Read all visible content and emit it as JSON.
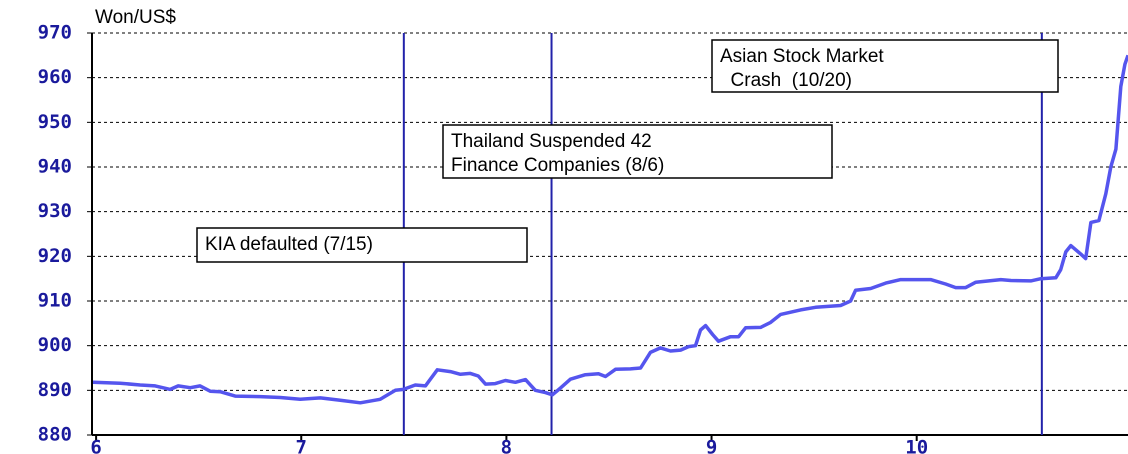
{
  "chart_data": {
    "type": "line",
    "y_label": "Won/US$",
    "xlim": [
      5.98,
      11.03
    ],
    "xticks": [
      6,
      7,
      8,
      9,
      10
    ],
    "ylim": [
      880,
      970
    ],
    "yticks": [
      880,
      890,
      900,
      910,
      920,
      930,
      940,
      950,
      960,
      970
    ],
    "grid": true,
    "series": [
      {
        "color": "#5555ee",
        "x": [
          5.985,
          6.117,
          6.215,
          6.288,
          6.361,
          6.4,
          6.459,
          6.507,
          6.556,
          6.605,
          6.678,
          6.8,
          6.898,
          6.995,
          7.093,
          7.19,
          7.288,
          7.385,
          7.459,
          7.498,
          7.556,
          7.605,
          7.663,
          7.727,
          7.776,
          7.824,
          7.863,
          7.898,
          7.946,
          7.995,
          8.044,
          8.093,
          8.141,
          8.19,
          8.224,
          8.263,
          8.312,
          8.385,
          8.449,
          8.483,
          8.532,
          8.605,
          8.654,
          8.702,
          8.751,
          8.8,
          8.849,
          8.888,
          8.922,
          8.946,
          8.971,
          9.005,
          9.034,
          9.093,
          9.132,
          9.166,
          9.239,
          9.288,
          9.337,
          9.434,
          9.507,
          9.629,
          9.678,
          9.702,
          9.776,
          9.849,
          9.922,
          10.068,
          10.141,
          10.19,
          10.239,
          10.288,
          10.41,
          10.459,
          10.556,
          10.605,
          10.678,
          10.702,
          10.727,
          10.751,
          10.8,
          10.824,
          10.849,
          10.888,
          10.922,
          10.946,
          10.971,
          10.995,
          11.015,
          11.03
        ],
        "values": [
          891.8,
          891.6,
          891.2,
          891,
          890.2,
          891,
          890.6,
          891,
          889.8,
          889.7,
          888.7,
          888.6,
          888.4,
          888,
          888.3,
          887.8,
          887.2,
          888,
          890,
          890.2,
          891.2,
          891,
          894.6,
          894.2,
          893.6,
          893.8,
          893.2,
          891.4,
          891.5,
          892.2,
          891.8,
          892.4,
          890,
          889.5,
          889,
          890.5,
          892.5,
          893.5,
          893.7,
          893.1,
          894.7,
          894.8,
          895,
          898.5,
          899.5,
          898.8,
          899,
          899.8,
          900,
          903.5,
          904.5,
          902.5,
          901,
          902,
          902,
          904,
          904.1,
          905.2,
          907,
          908,
          908.6,
          909,
          910,
          912.4,
          912.8,
          914,
          914.8,
          914.8,
          913.8,
          913,
          913,
          914.2,
          914.8,
          914.6,
          914.5,
          915,
          915.2,
          917,
          921,
          922.4,
          920.5,
          919.5,
          927.6,
          928,
          934,
          940,
          944,
          958,
          963,
          965
        ]
      }
    ],
    "events": [
      {
        "x": 7.5,
        "lines": [
          "KIA defaulted (7/15)"
        ]
      },
      {
        "x": 8.22,
        "lines": [
          "Thailand Suspended 42",
          "Finance Companies (8/6)"
        ]
      },
      {
        "x": 10.61,
        "lines": [
          "Asian Stock Market",
          "  Crash  (10/20)"
        ]
      }
    ]
  }
}
